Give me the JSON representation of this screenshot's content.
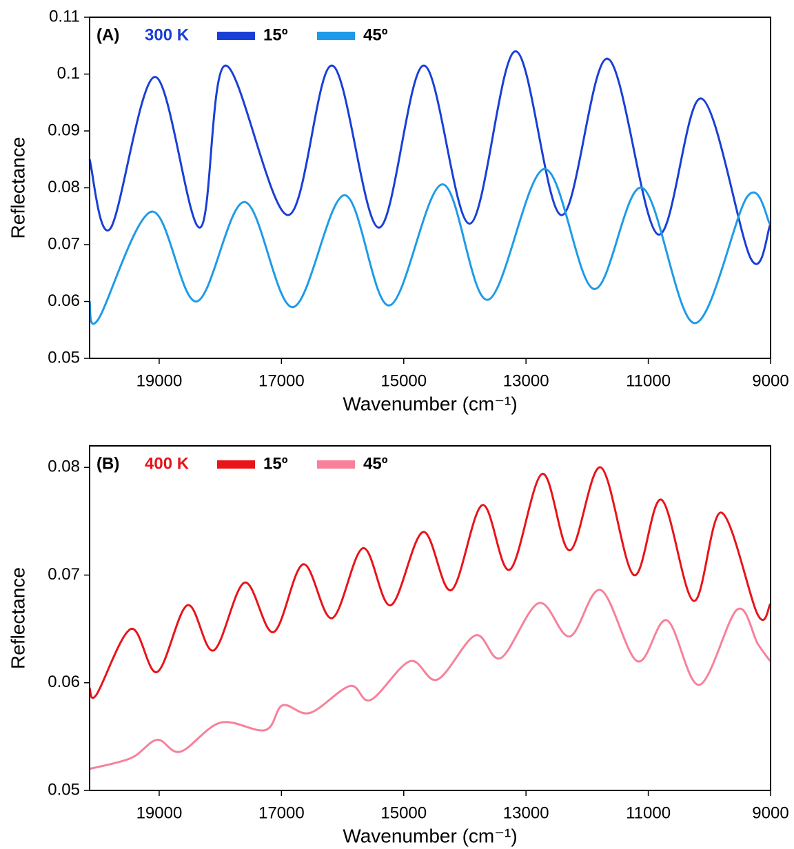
{
  "chart_data": [
    {
      "type": "line",
      "panel_label": "(A)",
      "legend_title": "300 K",
      "legend_title_color": "#1a3fd6",
      "xlabel": "Wavenumber (cm⁻¹)",
      "ylabel": "Reflectance",
      "xlim": [
        20138,
        9000
      ],
      "ylim": [
        0.05,
        0.11
      ],
      "xticks": [
        19000,
        17000,
        15000,
        13000,
        11000,
        9000
      ],
      "yticks": [
        0.05,
        0.06,
        0.07,
        0.08,
        0.09,
        0.1,
        0.11
      ],
      "series": [
        {
          "name": "15º",
          "color": "#1a3fd6",
          "x": [
            20138,
            19800,
            19068,
            18335,
            17918,
            16893,
            16172,
            15406,
            14673,
            13918,
            13174,
            12420,
            11665,
            10842,
            10132,
            9321,
            9005
          ],
          "values": [
            0.085,
            0.0728,
            0.0995,
            0.073,
            0.1015,
            0.0752,
            0.1015,
            0.073,
            0.1015,
            0.0737,
            0.104,
            0.0752,
            0.1027,
            0.0718,
            0.0957,
            0.0675,
            0.0735
          ]
        },
        {
          "name": "45º",
          "color": "#1e9be8",
          "x": [
            20138,
            20000,
            19124,
            18391,
            17603,
            16814,
            15969,
            15236,
            14369,
            13625,
            12701,
            11890,
            11101,
            10245,
            9377,
            9005
          ],
          "values": [
            0.06,
            0.0568,
            0.0758,
            0.06,
            0.0775,
            0.059,
            0.0787,
            0.0593,
            0.0806,
            0.0603,
            0.0833,
            0.0622,
            0.08,
            0.0562,
            0.0785,
            0.0735
          ]
        }
      ]
    },
    {
      "type": "line",
      "panel_label": "(B)",
      "legend_title": "400 K",
      "legend_title_color": "#e8141a",
      "xlabel": "Wavenumber (cm⁻¹)",
      "ylabel": "Reflectance",
      "xlim": [
        20138,
        9000
      ],
      "ylim": [
        0.05,
        0.082
      ],
      "xticks": [
        19000,
        17000,
        15000,
        13000,
        11000,
        9000
      ],
      "yticks": [
        0.05,
        0.06,
        0.07,
        0.08
      ],
      "series": [
        {
          "name": "15º",
          "color": "#e8141a",
          "x": [
            20138,
            20025,
            19462,
            19034,
            18538,
            18110,
            17603,
            17130,
            16645,
            16172,
            15665,
            15214,
            14684,
            14222,
            13715,
            13265,
            12735,
            12284,
            11777,
            11236,
            10786,
            10256,
            9805,
            9208,
            9005
          ],
          "values": [
            0.0595,
            0.0589,
            0.065,
            0.061,
            0.0672,
            0.063,
            0.0693,
            0.0647,
            0.071,
            0.066,
            0.0725,
            0.0672,
            0.074,
            0.0686,
            0.0765,
            0.0705,
            0.0794,
            0.0723,
            0.08,
            0.07,
            0.077,
            0.0676,
            0.0758,
            0.0663,
            0.0673
          ]
        },
        {
          "name": "45º",
          "color": "#f7819a",
          "x": [
            20138,
            19462,
            19034,
            18651,
            17997,
            17265,
            16983,
            16532,
            15879,
            15541,
            14898,
            14448,
            13828,
            13411,
            12791,
            12284,
            11777,
            11180,
            10696,
            10166,
            9546,
            9208,
            9005
          ],
          "values": [
            0.052,
            0.053,
            0.0547,
            0.0536,
            0.0563,
            0.0556,
            0.0579,
            0.0572,
            0.0597,
            0.0584,
            0.062,
            0.0603,
            0.0644,
            0.0623,
            0.0674,
            0.0643,
            0.0686,
            0.062,
            0.0658,
            0.0598,
            0.0668,
            0.0636,
            0.062
          ]
        }
      ]
    }
  ]
}
